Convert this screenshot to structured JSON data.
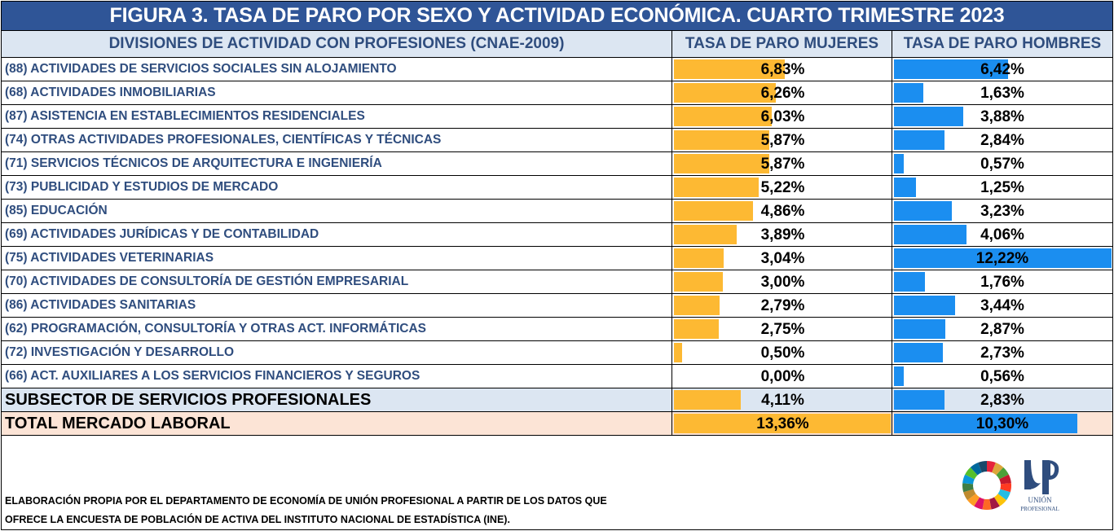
{
  "title": "FIGURA 3. TASA DE PARO POR SEXO Y ACTIVIDAD ECONÓMICA. CUARTO TRIMESTRE 2023",
  "headers": {
    "activity": "DIVISIONES DE ACTIVIDAD CON PROFESIONES (CNAE-2009)",
    "women": "TASA DE PARO MUJERES",
    "men": "TASA DE PARO HOMBRES"
  },
  "colors": {
    "title_bg": "#2f5597",
    "women_bar": "#fdb933",
    "men_bar": "#1b8ef0",
    "subsector_bg": "#dce6f2",
    "total_bg": "#fce4d6"
  },
  "chart_data": {
    "type": "bar",
    "title": "FIGURA 3. TASA DE PARO POR SEXO Y ACTIVIDAD ECONÓMICA. CUARTO TRIMESTRE 2023",
    "categories": [
      "(88) ACTIVIDADES DE SERVICIOS SOCIALES SIN ALOJAMIENTO",
      "(68) ACTIVIDADES INMOBILIARIAS",
      "(87) ASISTENCIA EN ESTABLECIMIENTOS RESIDENCIALES",
      "(74) OTRAS ACTIVIDADES PROFESIONALES, CIENTÍFICAS Y TÉCNICAS",
      "(71) SERVICIOS TÉCNICOS DE ARQUITECTURA E INGENIERÍA",
      "(73) PUBLICIDAD Y ESTUDIOS DE MERCADO",
      "(85) EDUCACIÓN",
      "(69) ACTIVIDADES JURÍDICAS Y DE CONTABILIDAD",
      "(75) ACTIVIDADES VETERINARIAS",
      "(70) ACTIVIDADES DE CONSULTORÍA DE GESTIÓN EMPRESARIAL",
      "(86) ACTIVIDADES SANITARIAS",
      "(62) PROGRAMACIÓN, CONSULTORÍA Y OTRAS ACT. INFORMÁTICAS",
      "(72) INVESTIGACIÓN Y DESARROLLO",
      "(66) ACT. AUXILIARES A LOS SERVICIOS FINANCIEROS Y SEGUROS",
      "SUBSECTOR DE SERVICIOS PROFESIONALES",
      "TOTAL MERCADO LABORAL"
    ],
    "series": [
      {
        "name": "TASA DE PARO MUJERES",
        "values": [
          6.83,
          6.26,
          6.03,
          5.87,
          5.87,
          5.22,
          4.86,
          3.89,
          3.04,
          3.0,
          2.79,
          2.75,
          0.5,
          0.0,
          4.11,
          13.36
        ]
      },
      {
        "name": "TASA DE PARO HOMBRES",
        "values": [
          6.42,
          1.63,
          3.88,
          2.84,
          0.57,
          1.25,
          3.23,
          4.06,
          12.22,
          1.76,
          3.44,
          2.87,
          2.73,
          0.56,
          2.83,
          10.3
        ]
      }
    ],
    "labels_women": [
      "6,83%",
      "6,26%",
      "6,03%",
      "5,87%",
      "5,87%",
      "5,22%",
      "4,86%",
      "3,89%",
      "3,04%",
      "3,00%",
      "2,79%",
      "2,75%",
      "0,50%",
      "0,00%",
      "4,11%",
      "13,36%"
    ],
    "labels_men": [
      "6,42%",
      "1,63%",
      "3,88%",
      "2,84%",
      "0,57%",
      "1,25%",
      "3,23%",
      "4,06%",
      "12,22%",
      "1,76%",
      "3,44%",
      "2,87%",
      "2,73%",
      "0,56%",
      "2,83%",
      "10,30%"
    ],
    "women_max": 13.36,
    "men_max": 12.22
  },
  "footer": {
    "line1": "ELABORACIÓN PROPIA POR EL DEPARTAMENTO DE ECONOMÍA DE UNIÓN PROFESIONAL A PARTIR DE LOS DATOS QUE",
    "line2": "OFRECE LA ENCUESTA DE POBLACIÓN DE ACTIVA DEL INSTITUTO NACIONAL DE ESTADÍSTICA (INE)."
  },
  "logos": {
    "sdg_wheel": "sdg-wheel-icon",
    "union_profesional": "union-profesional-logo",
    "logo_text": "UNIÓN PROFESIONAL"
  }
}
